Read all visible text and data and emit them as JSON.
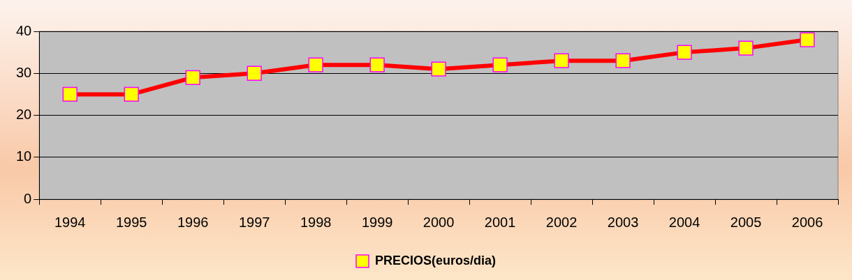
{
  "chart_data": {
    "type": "line",
    "categories": [
      "1994",
      "1995",
      "1996",
      "1997",
      "1998",
      "1999",
      "2000",
      "2001",
      "2002",
      "2003",
      "2004",
      "2005",
      "2006"
    ],
    "series": [
      {
        "name": "PRECIOS(euros/dia)",
        "color": "#ff0000",
        "values": [
          25,
          25,
          29,
          30,
          32,
          32,
          31,
          32,
          33,
          33,
          35,
          36,
          38
        ]
      }
    ],
    "ylim": [
      0,
      40
    ],
    "yticks": [
      0,
      10,
      20,
      30,
      40
    ],
    "grid": "y",
    "legend": "bottom",
    "marker": "square",
    "line_style": "solid"
  }
}
